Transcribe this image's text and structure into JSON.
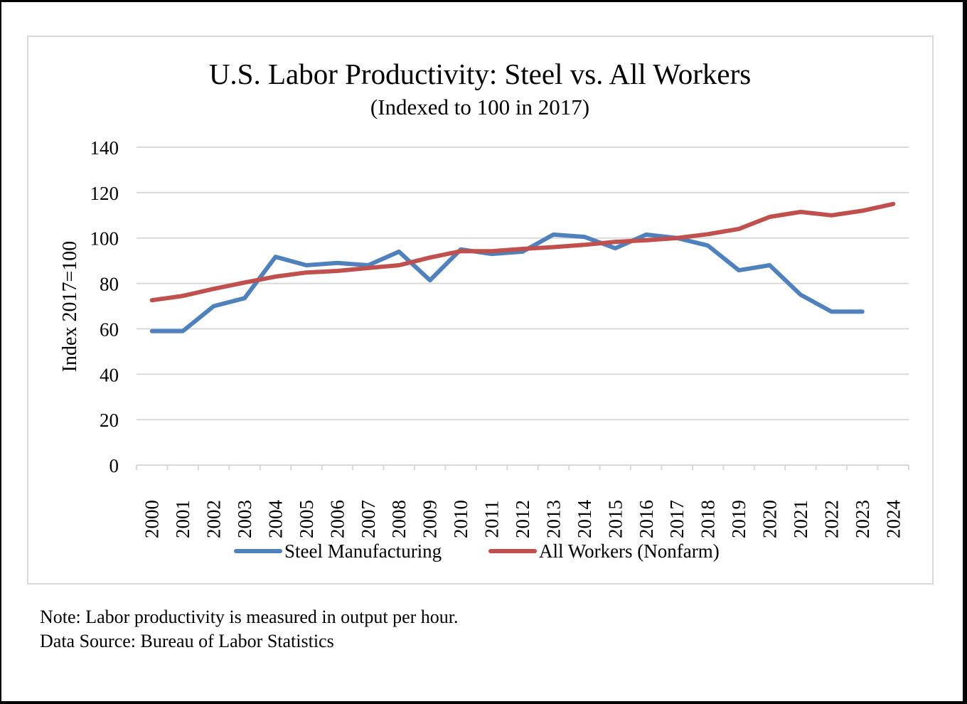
{
  "chart_data": {
    "type": "line",
    "title": "U.S. Labor Productivity: Steel vs. All Workers",
    "subtitle": "(Indexed to 100 in 2017)",
    "xlabel": "",
    "ylabel": "Index 2017=100",
    "ylim": [
      0,
      140
    ],
    "yticks": [
      0,
      20,
      40,
      60,
      80,
      100,
      120,
      140
    ],
    "grid": true,
    "legend_position": "bottom",
    "categories": [
      "2000",
      "2001",
      "2002",
      "2003",
      "2004",
      "2005",
      "2006",
      "2007",
      "2008",
      "2009",
      "2010",
      "2011",
      "2012",
      "2013",
      "2014",
      "2015",
      "2016",
      "2017",
      "2018",
      "2019",
      "2020",
      "2021",
      "2022",
      "2023",
      "2024"
    ],
    "series": [
      {
        "name": "Steel Manufacturing",
        "color": "#4f81bd",
        "values": [
          59,
          59,
          70,
          73.5,
          91.7,
          88,
          89,
          88,
          94,
          81.4,
          95,
          93,
          94,
          101.5,
          100.5,
          95.5,
          101.5,
          100,
          96.7,
          85.8,
          88,
          75,
          67.6,
          67.6,
          null
        ]
      },
      {
        "name": "All Workers (Nonfarm)",
        "color": "#c0504d",
        "values": [
          72.6,
          74.5,
          77.6,
          80.4,
          83,
          84.8,
          85.5,
          86.8,
          88,
          91.4,
          94.2,
          94.2,
          95.2,
          96,
          97,
          98.3,
          99,
          100,
          101.7,
          104,
          109.3,
          111.5,
          110,
          112,
          115
        ]
      }
    ]
  },
  "notes": {
    "note": "Note: Labor productivity is measured in output per hour.",
    "source": "Data Source: Bureau of Labor Statistics"
  }
}
